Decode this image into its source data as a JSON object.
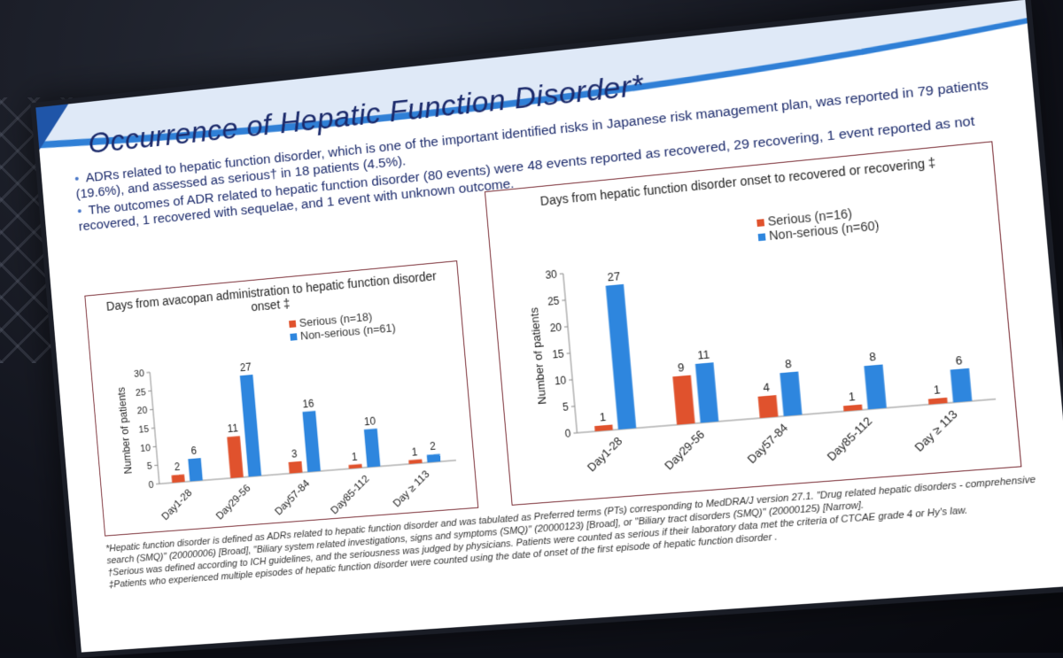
{
  "slide": {
    "title": "Occurrence of Hepatic Function Disorder*",
    "bullets": [
      "ADRs related to hepatic function disorder, which is one of the important identified risks in Japanese risk management plan, was reported in 79 patients (19.6%), and assessed as serious† in 18 patients (4.5%).",
      "The outcomes of ADR related to hepatic function disorder (80 events) were 48 events reported as recovered, 29 recovering, 1 event reported as not recovered, 1 recovered with sequelae, and 1 event with unknown outcome."
    ],
    "footnotes": [
      "*Hepatic function disorder is defined as ADRs related to hepatic function disorder and was tabulated as Preferred terms (PTs) corresponding to MedDRA/J version 27.1. \"Drug related hepatic disorders - comprehensive search (SMQ)\" (20000006) [Broad], \"Biliary system related investigations, signs and symptoms (SMQ)\" (20000123) [Broad], or \"Biliary tract disorders (SMQ)\" (20000125) [Narrow].",
      "†Serious was defined according to ICH guidelines, and the seriousness was judged by physicians. Patients were counted as serious if their laboratory data met the criteria of CTCAE grade 4 or Hy's law.",
      "‡Patients who experienced multiple episodes of hepatic function disorder were counted using the date of onset of the first episode of hepatic function disorder ."
    ]
  },
  "colors": {
    "serious": "#e0522d",
    "nonserious": "#2e86de",
    "title": "#1b2a6b"
  },
  "chart_data": [
    {
      "type": "bar",
      "title": "Days from avacopan administration to hepatic function disorder onset ‡",
      "categories": [
        "Day1-28",
        "Day29-56",
        "Day57-84",
        "Day85-112",
        "Day ≥ 113"
      ],
      "series": [
        {
          "name": "Serious (n=18)",
          "values": [
            2,
            11,
            3,
            1,
            1
          ]
        },
        {
          "name": "Non-serious (n=61)",
          "values": [
            6,
            27,
            16,
            10,
            2
          ]
        }
      ],
      "ylabel": "Number of patients",
      "ylim": [
        0,
        30
      ],
      "yticks": [
        0,
        5,
        10,
        15,
        20,
        25,
        30
      ]
    },
    {
      "type": "bar",
      "title": "Days from hepatic function disorder onset to recovered or recovering ‡",
      "categories": [
        "Day1-28",
        "Day29-56",
        "Day57-84",
        "Day85-112",
        "Day ≥ 113"
      ],
      "series": [
        {
          "name": "Serious (n=16)",
          "values": [
            1,
            9,
            4,
            1,
            1
          ]
        },
        {
          "name": "Non-serious (n=60)",
          "values": [
            27,
            11,
            8,
            8,
            6
          ]
        }
      ],
      "ylabel": "Number of patients",
      "ylim": [
        0,
        30
      ],
      "yticks": [
        0,
        5,
        10,
        15,
        20,
        25,
        30
      ]
    }
  ]
}
